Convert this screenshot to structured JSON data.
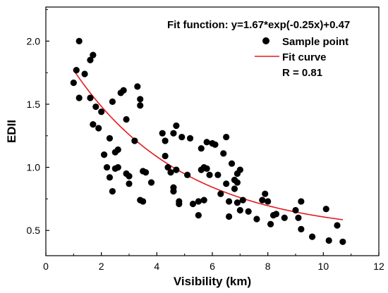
{
  "chart_data": {
    "type": "scatter",
    "xlabel": "Visibility (km)",
    "ylabel": "EDII",
    "xlim": [
      0,
      12
    ],
    "ylim": [
      0.3,
      2.27
    ],
    "x_ticks": [
      0,
      2,
      4,
      6,
      8,
      10,
      12
    ],
    "y_ticks": [
      0.5,
      1.0,
      1.5,
      2.0
    ],
    "x_tick_labels": [
      "0",
      "2",
      "4",
      "6",
      "8",
      "10",
      "12"
    ],
    "y_tick_labels": [
      "0.5",
      "1.0",
      "1.5",
      "2.0"
    ],
    "annotation": "Fit function: y=1.67*exp(-0.25x)+0.47",
    "legend": {
      "position": "top-right",
      "entries": [
        {
          "label": "Sample point",
          "marker": "circle",
          "color": "#000000"
        },
        {
          "label": "Fit curve",
          "marker": "line",
          "color": "#e41a1c"
        }
      ]
    },
    "stat_text": "R = 0.81",
    "fit": {
      "a": 1.67,
      "b": -0.25,
      "c": 0.47,
      "x_range": [
        1.0,
        10.7
      ]
    },
    "series": [
      {
        "name": "Sample point",
        "points": [
          [
            1.0,
            1.67
          ],
          [
            1.1,
            1.77
          ],
          [
            1.2,
            2.0
          ],
          [
            1.2,
            1.55
          ],
          [
            1.4,
            1.74
          ],
          [
            1.6,
            1.85
          ],
          [
            1.6,
            1.55
          ],
          [
            1.7,
            1.89
          ],
          [
            1.7,
            1.34
          ],
          [
            1.8,
            1.48
          ],
          [
            1.9,
            1.31
          ],
          [
            2.0,
            1.44
          ],
          [
            2.1,
            1.1
          ],
          [
            2.2,
            1.0
          ],
          [
            2.3,
            1.23
          ],
          [
            2.3,
            0.92
          ],
          [
            2.4,
            0.81
          ],
          [
            2.4,
            1.52
          ],
          [
            2.5,
            0.99
          ],
          [
            2.5,
            1.12
          ],
          [
            2.6,
            1.14
          ],
          [
            2.6,
            1.0
          ],
          [
            2.7,
            1.59
          ],
          [
            2.8,
            1.61
          ],
          [
            2.9,
            1.38
          ],
          [
            2.9,
            0.95
          ],
          [
            3.0,
            0.87
          ],
          [
            3.0,
            0.93
          ],
          [
            3.2,
            1.21
          ],
          [
            3.3,
            1.64
          ],
          [
            3.4,
            1.54
          ],
          [
            3.4,
            1.49
          ],
          [
            3.4,
            0.74
          ],
          [
            3.5,
            0.73
          ],
          [
            3.5,
            0.97
          ],
          [
            3.6,
            0.96
          ],
          [
            3.8,
            0.88
          ],
          [
            4.2,
            1.27
          ],
          [
            4.3,
            1.09
          ],
          [
            4.3,
            1.21
          ],
          [
            4.4,
            1.0
          ],
          [
            4.5,
            0.96
          ],
          [
            4.6,
            1.27
          ],
          [
            4.6,
            0.84
          ],
          [
            4.6,
            0.81
          ],
          [
            4.7,
            1.33
          ],
          [
            4.7,
            0.98
          ],
          [
            4.8,
            0.71
          ],
          [
            4.8,
            0.73
          ],
          [
            4.9,
            1.24
          ],
          [
            5.1,
            0.94
          ],
          [
            5.2,
            1.23
          ],
          [
            5.3,
            0.71
          ],
          [
            5.5,
            0.73
          ],
          [
            5.5,
            0.62
          ],
          [
            5.6,
            1.15
          ],
          [
            5.6,
            0.98
          ],
          [
            5.7,
            0.74
          ],
          [
            5.7,
            1.0
          ],
          [
            5.8,
            0.99
          ],
          [
            5.8,
            1.2
          ],
          [
            5.9,
            0.94
          ],
          [
            6.0,
            1.19
          ],
          [
            6.1,
            1.18
          ],
          [
            6.2,
            0.94
          ],
          [
            6.3,
            0.79
          ],
          [
            6.4,
            1.11
          ],
          [
            6.5,
            1.24
          ],
          [
            6.5,
            0.87
          ],
          [
            6.6,
            0.73
          ],
          [
            6.6,
            0.61
          ],
          [
            6.7,
            1.03
          ],
          [
            6.8,
            0.83
          ],
          [
            6.8,
            0.9
          ],
          [
            6.9,
            0.95
          ],
          [
            6.9,
            0.88
          ],
          [
            6.9,
            0.72
          ],
          [
            7.0,
            0.98
          ],
          [
            7.0,
            0.66
          ],
          [
            7.1,
            0.74
          ],
          [
            7.3,
            0.65
          ],
          [
            7.6,
            0.59
          ],
          [
            7.8,
            0.74
          ],
          [
            7.9,
            0.79
          ],
          [
            8.0,
            0.73
          ],
          [
            8.1,
            0.55
          ],
          [
            8.2,
            0.62
          ],
          [
            8.3,
            0.63
          ],
          [
            8.6,
            0.6
          ],
          [
            9.0,
            0.66
          ],
          [
            9.1,
            0.6
          ],
          [
            9.2,
            0.73
          ],
          [
            9.2,
            0.51
          ],
          [
            9.6,
            0.45
          ],
          [
            10.1,
            0.67
          ],
          [
            10.2,
            0.42
          ],
          [
            10.5,
            0.54
          ],
          [
            10.7,
            0.41
          ]
        ]
      }
    ]
  }
}
